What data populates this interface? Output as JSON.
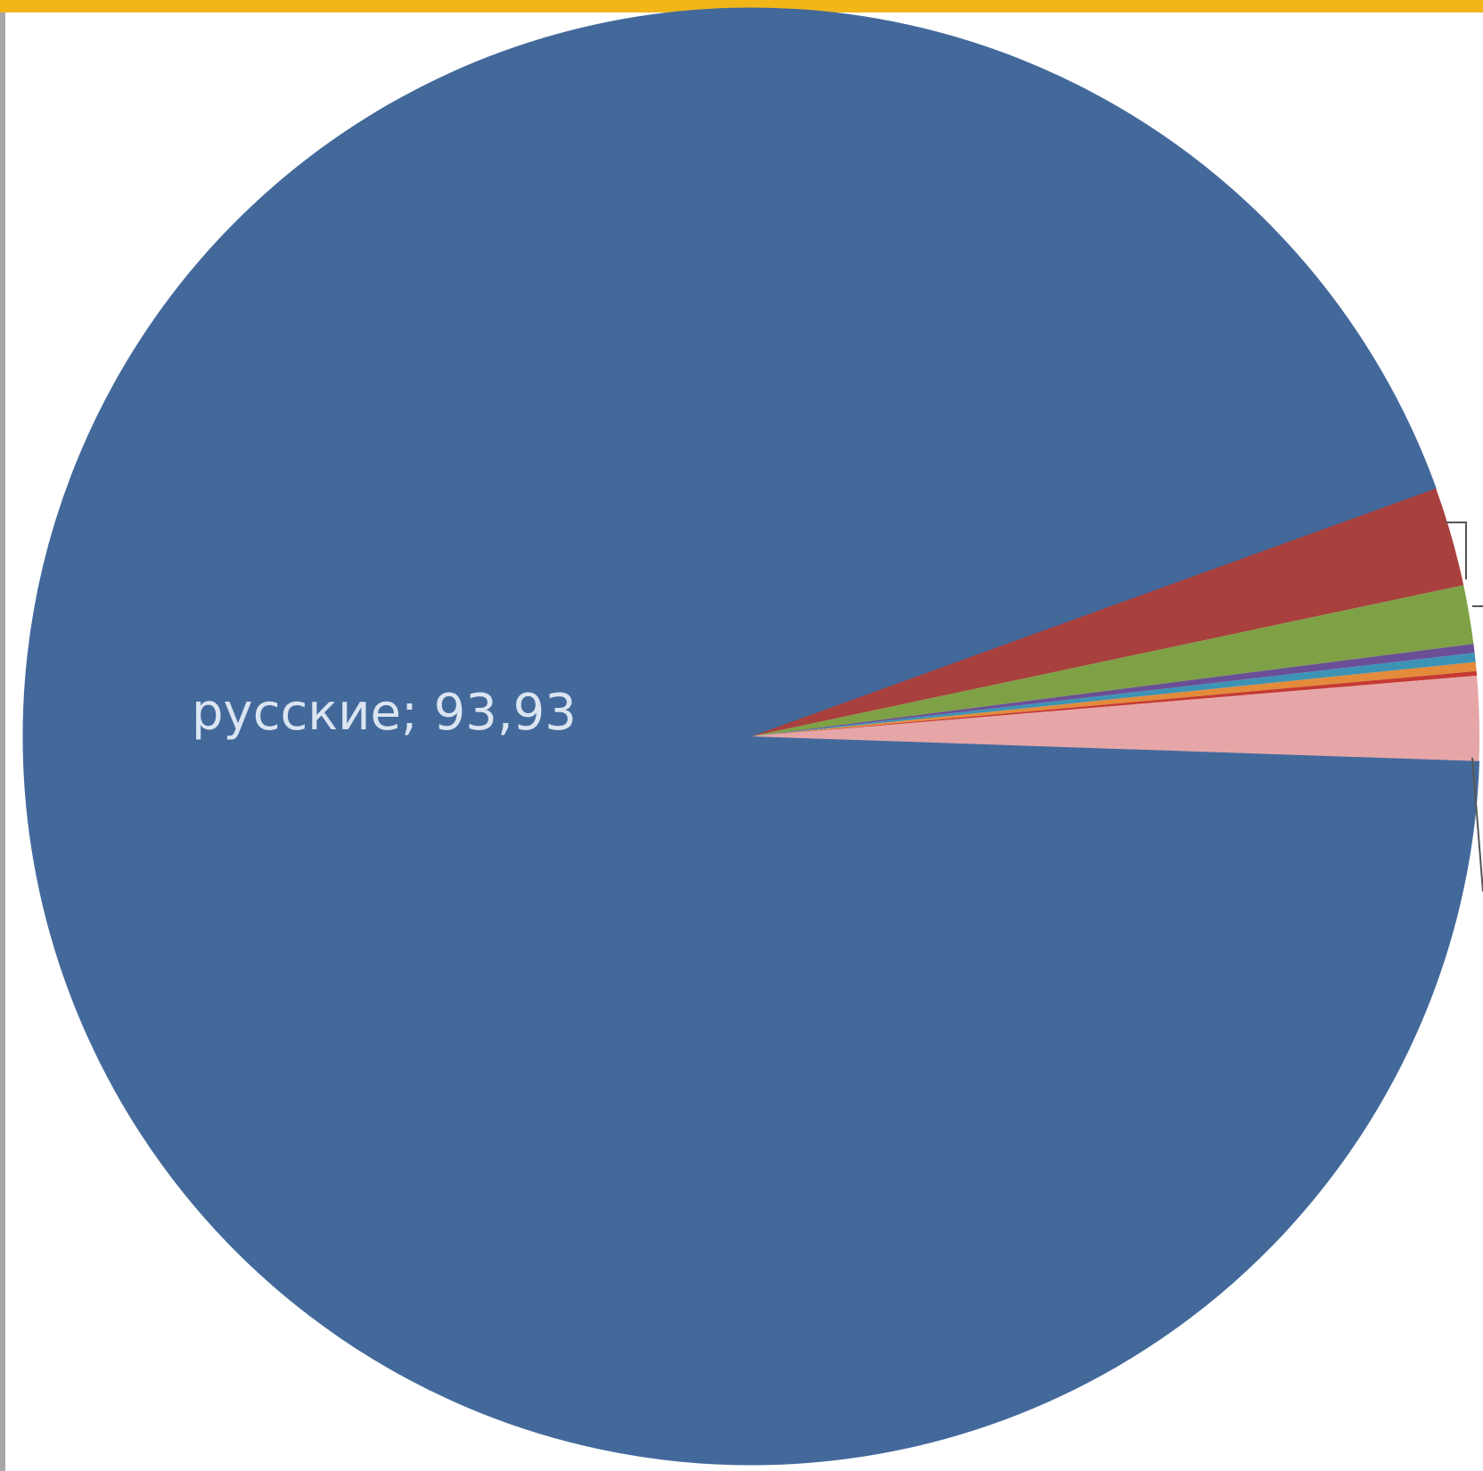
{
  "colors": {
    "border_top": "#f2b619",
    "border_left": "#a7a7a7",
    "background": "#ffffff",
    "label_text": "#dbe5f1"
  },
  "chart_data": {
    "type": "pie",
    "title": "",
    "legend": "none",
    "slices": [
      {
        "label": "русские; 93,93",
        "value": 93.93,
        "color": "#43699b"
      },
      {
        "value": 2.2,
        "color": "#a8403d"
      },
      {
        "value": 1.3,
        "color": "#7ea146"
      },
      {
        "value": 0.2,
        "color": "#6a4f96"
      },
      {
        "value": 0.2,
        "color": "#3d93b4"
      },
      {
        "value": 0.2,
        "color": "#e38a3b"
      },
      {
        "value": 0.1,
        "color": "#c53a32"
      },
      {
        "value": 1.87,
        "color": "#e6a6a8"
      }
    ]
  }
}
